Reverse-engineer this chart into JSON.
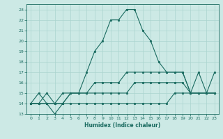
{
  "title": "",
  "xlabel": "Humidex (Indice chaleur)",
  "xlim": [
    -0.5,
    23.5
  ],
  "ylim": [
    13,
    23.5
  ],
  "yticks": [
    13,
    14,
    15,
    16,
    17,
    18,
    19,
    20,
    21,
    22,
    23
  ],
  "xticks": [
    0,
    1,
    2,
    3,
    4,
    5,
    6,
    7,
    8,
    9,
    10,
    11,
    12,
    13,
    14,
    15,
    16,
    17,
    18,
    19,
    20,
    21,
    22,
    23
  ],
  "bg_color": "#cce9e5",
  "grid_color": "#aad4cf",
  "line_color": "#1a6b60",
  "curves": [
    {
      "x": [
        0,
        1,
        2,
        3,
        4,
        5,
        6,
        7,
        8,
        9,
        10,
        11,
        12,
        13,
        14,
        15,
        16,
        17,
        18,
        19,
        20,
        21,
        22,
        23
      ],
      "y": [
        14,
        15,
        14,
        13,
        14,
        15,
        15,
        17,
        19,
        20,
        22,
        22,
        23,
        23,
        21,
        20,
        18,
        17,
        17,
        17,
        15,
        17,
        15,
        17
      ]
    },
    {
      "x": [
        0,
        1,
        2,
        3,
        4,
        5,
        6,
        7,
        8,
        9,
        10,
        11,
        12,
        13,
        14,
        15,
        16,
        17,
        18,
        19,
        20,
        21,
        22,
        23
      ],
      "y": [
        14,
        14,
        15,
        14,
        14,
        15,
        15,
        15,
        16,
        16,
        16,
        16,
        17,
        17,
        17,
        17,
        17,
        17,
        17,
        17,
        15,
        15,
        15,
        15
      ]
    },
    {
      "x": [
        0,
        1,
        2,
        3,
        4,
        5,
        6,
        7,
        8,
        9,
        10,
        11,
        12,
        13,
        14,
        15,
        16,
        17,
        18,
        19,
        20,
        21,
        22,
        23
      ],
      "y": [
        14,
        14,
        14,
        14,
        15,
        15,
        15,
        15,
        15,
        15,
        15,
        15,
        15,
        16,
        16,
        16,
        16,
        16,
        16,
        16,
        15,
        15,
        15,
        15
      ]
    },
    {
      "x": [
        0,
        1,
        2,
        3,
        4,
        5,
        6,
        7,
        8,
        9,
        10,
        11,
        12,
        13,
        14,
        15,
        16,
        17,
        18,
        19,
        20,
        21,
        22,
        23
      ],
      "y": [
        14,
        14,
        14,
        14,
        14,
        14,
        14,
        14,
        14,
        14,
        14,
        14,
        14,
        14,
        14,
        14,
        14,
        14,
        15,
        15,
        15,
        15,
        15,
        15
      ]
    }
  ]
}
